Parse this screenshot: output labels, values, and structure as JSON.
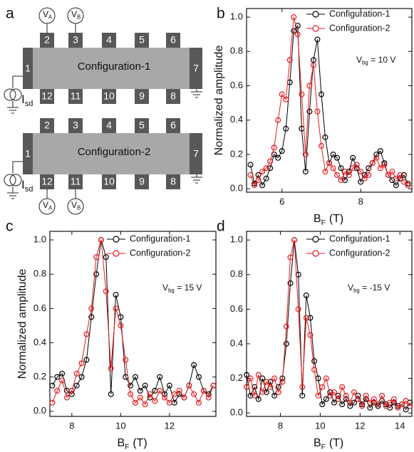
{
  "diagram": {
    "panel": "a",
    "devices": [
      {
        "label": "Configuration-1",
        "left": "1",
        "right": "7",
        "contacts_top": [
          "2",
          "3",
          "4",
          "5",
          "6"
        ],
        "contacts_bottom": [
          "12",
          "11",
          "10",
          "9",
          "8"
        ],
        "voltmeters": [
          {
            "main": "V",
            "sub": "A"
          },
          {
            "main": "V",
            "sub": "B"
          }
        ],
        "source": {
          "main": "I",
          "sub": "sd"
        }
      },
      {
        "label": "Configuration-2",
        "left": "1",
        "right": "7",
        "contacts_top": [
          "2",
          "3",
          "4",
          "5",
          "6"
        ],
        "contacts_bottom": [
          "12",
          "11",
          "10",
          "9",
          "8"
        ],
        "voltmeters": [
          {
            "main": "V",
            "sub": "A"
          },
          {
            "main": "V",
            "sub": "B"
          }
        ],
        "source": {
          "main": "I",
          "sub": "sd"
        }
      }
    ]
  },
  "chart_data": [
    {
      "type": "line",
      "panel": "b",
      "x_label": {
        "main": "B",
        "sub": "F",
        "rest": "(T)"
      },
      "y_label": "Normalized amplitude",
      "annotation": {
        "main": "V",
        "sub": "bg",
        "rest": "= 10 V"
      },
      "xlim": [
        5.1,
        9.3
      ],
      "xticks": [
        6,
        8
      ],
      "ylim": [
        -0.02,
        1.05
      ],
      "yticks": [
        {
          "value": 0,
          "label": "0.0"
        },
        0.2,
        0.4,
        0.6,
        0.8,
        {
          "value": 1,
          "label": "1.0"
        }
      ],
      "x": [
        5.2,
        5.3,
        5.4,
        5.5,
        5.6,
        5.7,
        5.8,
        5.9,
        6.0,
        6.1,
        6.2,
        6.3,
        6.4,
        6.5,
        6.6,
        6.7,
        6.8,
        6.9,
        7.0,
        7.1,
        7.2,
        7.3,
        7.4,
        7.5,
        7.6,
        7.7,
        7.8,
        7.9,
        8.0,
        8.1,
        8.2,
        8.3,
        8.4,
        8.5,
        8.6,
        8.7,
        8.8,
        8.9,
        9.0,
        9.1,
        9.2
      ],
      "series": [
        {
          "name": "Configuration-1",
          "color": "#000000",
          "values": [
            0.14,
            0.03,
            0.08,
            0.02,
            0.06,
            0.12,
            0.2,
            0.18,
            0.22,
            0.35,
            0.62,
            0.92,
            0.95,
            0.35,
            0.1,
            0.45,
            0.75,
            0.87,
            0.55,
            0.3,
            0.15,
            0.2,
            0.18,
            0.12,
            0.05,
            0.1,
            0.18,
            0.12,
            0.04,
            0.08,
            0.12,
            0.15,
            0.2,
            0.22,
            0.15,
            0.08,
            0.05,
            0.02,
            0.06,
            0.08,
            0.03
          ]
        },
        {
          "name": "Configuration-2",
          "color": "#e8191c",
          "values": [
            0.08,
            0.02,
            0.05,
            0.1,
            0.12,
            0.16,
            0.24,
            0.4,
            0.55,
            0.52,
            0.75,
            1.0,
            0.9,
            0.55,
            0.2,
            0.6,
            0.72,
            0.45,
            0.25,
            0.1,
            0.15,
            0.12,
            0.08,
            0.05,
            0.1,
            0.08,
            0.12,
            0.14,
            0.1,
            0.06,
            0.08,
            0.15,
            0.18,
            0.12,
            0.14,
            0.08,
            0.1,
            0.06,
            0.08,
            0.04,
            0.02
          ]
        }
      ]
    },
    {
      "type": "line",
      "panel": "c",
      "x_label": {
        "main": "B",
        "sub": "F",
        "rest": "(T)"
      },
      "y_label": "Normalized amplitude",
      "annotation": {
        "main": "V",
        "sub": "bg",
        "rest": "= 15 V"
      },
      "xlim": [
        7.1,
        13.9
      ],
      "xticks": [
        8,
        10,
        12
      ],
      "ylim": [
        -0.03,
        1.05
      ],
      "yticks": [
        {
          "value": 0,
          "label": "0.0"
        },
        0.2,
        0.4,
        0.6,
        0.8,
        {
          "value": 1,
          "label": "1.0"
        }
      ],
      "x": [
        7.2,
        7.4,
        7.6,
        7.8,
        8.0,
        8.2,
        8.4,
        8.6,
        8.8,
        9.0,
        9.2,
        9.4,
        9.6,
        9.8,
        10.0,
        10.2,
        10.4,
        10.6,
        10.8,
        11.0,
        11.2,
        11.4,
        11.6,
        11.8,
        12.0,
        12.2,
        12.4,
        12.6,
        12.8,
        13.0,
        13.2,
        13.4,
        13.6,
        13.8
      ],
      "series": [
        {
          "name": "Configuration-1",
          "color": "#000000",
          "values": [
            0.15,
            0.2,
            0.22,
            0.12,
            0.1,
            0.15,
            0.2,
            0.3,
            0.55,
            0.8,
            1.0,
            0.9,
            0.1,
            0.68,
            0.55,
            0.2,
            0.15,
            0.2,
            0.12,
            0.15,
            0.08,
            0.12,
            0.2,
            0.1,
            0.15,
            0.05,
            0.1,
            0.08,
            0.15,
            0.27,
            0.2,
            0.12,
            0.1,
            0.15
          ]
        },
        {
          "name": "Configuration-2",
          "color": "#e8191c",
          "values": [
            0.05,
            0.12,
            0.18,
            0.08,
            0.12,
            0.22,
            0.28,
            0.45,
            0.6,
            0.9,
            1.0,
            0.7,
            0.25,
            0.6,
            0.5,
            0.3,
            0.1,
            0.05,
            0.08,
            0.04,
            0.1,
            0.06,
            0.12,
            0.08,
            0.05,
            0.1,
            0.12,
            0.08,
            0.15,
            0.1,
            0.05,
            0.12,
            0.08,
            0.15
          ]
        }
      ]
    },
    {
      "type": "line",
      "panel": "d",
      "x_label": {
        "main": "B",
        "sub": "F",
        "rest": "(T)"
      },
      "annotation": {
        "main": "V",
        "sub": "bg",
        "rest": "= -15 V"
      },
      "xlim": [
        6.3,
        14.6
      ],
      "xticks": [
        8,
        10,
        12,
        14
      ],
      "ylim": [
        -0.02,
        1.05
      ],
      "yticks": [
        {
          "value": 0,
          "label": "0.0"
        },
        0.2,
        0.4,
        0.6,
        0.8,
        {
          "value": 1,
          "label": "1.0"
        }
      ],
      "x": [
        6.3,
        6.5,
        6.7,
        6.9,
        7.1,
        7.3,
        7.5,
        7.7,
        7.9,
        8.1,
        8.3,
        8.5,
        8.7,
        8.9,
        9.1,
        9.3,
        9.5,
        9.7,
        9.9,
        10.1,
        10.3,
        10.5,
        10.7,
        10.9,
        11.1,
        11.3,
        11.5,
        11.7,
        11.9,
        12.1,
        12.3,
        12.5,
        12.7,
        12.9,
        13.1,
        13.3,
        13.5,
        13.7,
        13.9,
        14.1,
        14.3,
        14.5
      ],
      "series": [
        {
          "name": "Configuration-1",
          "color": "#000000",
          "values": [
            0.22,
            0.1,
            0.15,
            0.08,
            0.2,
            0.12,
            0.18,
            0.1,
            0.15,
            0.2,
            0.4,
            0.75,
            1.0,
            0.8,
            0.1,
            0.68,
            0.55,
            0.3,
            0.2,
            0.05,
            0.08,
            0.12,
            0.06,
            0.1,
            0.05,
            0.08,
            0.04,
            0.06,
            0.1,
            0.05,
            0.08,
            0.03,
            0.06,
            0.04,
            0.07,
            0.05,
            0.03,
            0.06,
            0.04,
            0.05,
            0.02,
            0.06
          ]
        },
        {
          "name": "Configuration-2",
          "color": "#e8191c",
          "values": [
            0.15,
            0.2,
            0.1,
            0.22,
            0.12,
            0.18,
            0.15,
            0.2,
            0.12,
            0.18,
            0.5,
            0.9,
            1.0,
            0.6,
            0.15,
            0.55,
            0.45,
            0.25,
            0.1,
            0.15,
            0.2,
            0.1,
            0.12,
            0.08,
            0.15,
            0.1,
            0.06,
            0.12,
            0.08,
            0.04,
            0.1,
            0.06,
            0.08,
            0.05,
            0.1,
            0.04,
            0.06,
            0.08,
            0.03,
            0.05,
            0.07,
            0.04
          ]
        }
      ]
    }
  ]
}
